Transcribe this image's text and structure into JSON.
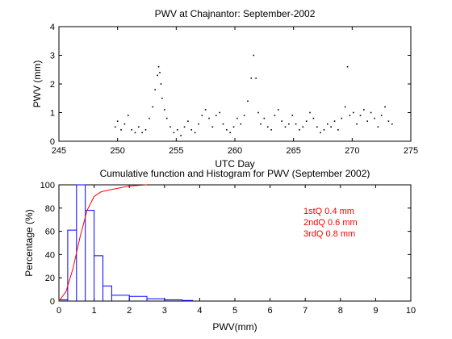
{
  "chart_data": [
    {
      "type": "scatter",
      "title": "PWV at Chajnantor: September-2002",
      "xlabel": "UTC Day",
      "ylabel": "PWV (mm)",
      "xlim": [
        245,
        275
      ],
      "ylim": [
        0,
        4
      ],
      "xticks": [
        "245",
        "250",
        "255",
        "260",
        "265",
        "270",
        "275"
      ],
      "yticks": [
        "0",
        "1",
        "2",
        "3",
        "4"
      ],
      "marker_color": "#000000",
      "series": [
        {
          "x": [
            249.8,
            250.0,
            250.3,
            250.6,
            250.9,
            251.2,
            251.5,
            251.8,
            252.1,
            252.4,
            252.7,
            253.0,
            253.2,
            253.4,
            253.5,
            253.6,
            253.7,
            253.8,
            254.0,
            254.2,
            254.5,
            254.8,
            255.1,
            255.4,
            255.7,
            256.0,
            256.3,
            256.6,
            256.9,
            257.2,
            257.5,
            257.8,
            258.1,
            258.4,
            258.7,
            259.0,
            259.3,
            259.6,
            259.9,
            260.2,
            260.5,
            260.8,
            261.1,
            261.4,
            261.6,
            261.8,
            262.0,
            262.2,
            262.5,
            262.8,
            263.1,
            263.4,
            263.7,
            264.0,
            264.3,
            264.6,
            264.9,
            265.2,
            265.5,
            265.8,
            266.1,
            266.4,
            266.7,
            267.0,
            267.3,
            267.6,
            267.9,
            268.2,
            268.5,
            268.8,
            269.1,
            269.4,
            269.6,
            269.8,
            270.1,
            270.4,
            270.7,
            271.0,
            271.3,
            271.6,
            271.9,
            272.2,
            272.5,
            272.8,
            273.1,
            273.4
          ],
          "y": [
            0.5,
            0.7,
            0.4,
            0.6,
            0.9,
            0.4,
            0.3,
            0.5,
            0.3,
            0.4,
            0.8,
            1.2,
            1.8,
            2.3,
            2.6,
            2.4,
            2.0,
            1.5,
            1.1,
            0.8,
            0.5,
            0.3,
            0.4,
            0.2,
            0.5,
            0.7,
            0.4,
            0.3,
            0.6,
            0.9,
            1.1,
            0.8,
            0.5,
            0.9,
            1.0,
            0.6,
            0.4,
            0.3,
            0.5,
            0.8,
            0.6,
            0.9,
            1.4,
            2.2,
            3.0,
            2.2,
            1.0,
            0.6,
            0.8,
            0.5,
            0.4,
            0.9,
            1.1,
            0.7,
            0.5,
            0.6,
            0.9,
            0.6,
            0.4,
            0.5,
            0.7,
            1.0,
            0.8,
            0.5,
            0.3,
            0.4,
            0.6,
            0.5,
            0.7,
            0.4,
            0.8,
            1.2,
            2.6,
            0.9,
            1.0,
            0.6,
            0.9,
            1.1,
            0.7,
            1.0,
            0.8,
            0.5,
            0.9,
            1.2,
            0.7,
            0.6
          ]
        }
      ]
    },
    {
      "type": "bar",
      "title": "Cumulative function and Histogram for PWV (September 2002)",
      "xlabel": "PWV(mm)",
      "ylabel": "Percentage (%)",
      "xlim": [
        0,
        10
      ],
      "ylim": [
        0,
        100
      ],
      "xticks": [
        "0",
        "1",
        "2",
        "3",
        "4",
        "5",
        "6",
        "7",
        "8",
        "9",
        "10"
      ],
      "yticks": [
        "0",
        "20",
        "40",
        "60",
        "80",
        "100"
      ],
      "histogram": {
        "name": "Histogram",
        "color": "#0000ff",
        "bin_edges": [
          0,
          0.25,
          0.5,
          0.75,
          1.0,
          1.25,
          1.5,
          2.0,
          2.5,
          3.0,
          3.5,
          3.8
        ],
        "values": [
          1,
          61,
          100,
          78,
          39,
          13,
          5,
          4,
          2,
          1,
          0.5
        ]
      },
      "cumulative": {
        "name": "Cumulative function",
        "color": "#ff0000",
        "x": [
          0,
          0.2,
          0.4,
          0.6,
          0.8,
          1.0,
          1.2,
          1.5,
          2.0,
          2.5
        ],
        "values": [
          0,
          8,
          28,
          55,
          78,
          90,
          94,
          96,
          99,
          100
        ]
      },
      "annotations": {
        "color": "#ff0000",
        "lines": [
          "1stQ 0.4 mm",
          "2ndQ 0.6 mm",
          "3rdQ 0.8 mm"
        ]
      }
    }
  ]
}
